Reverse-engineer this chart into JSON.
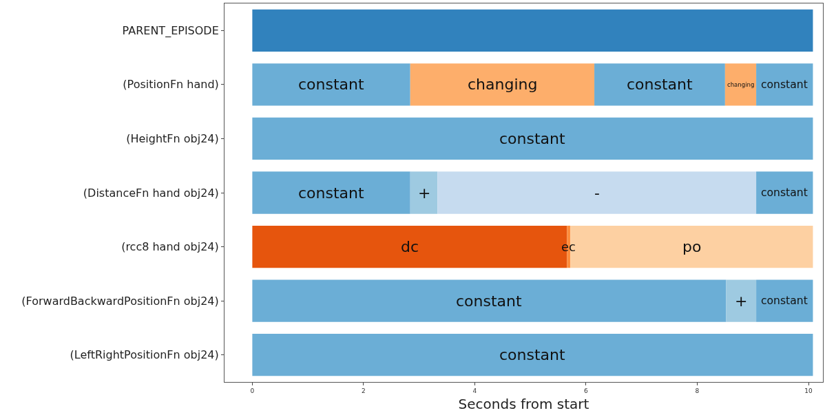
{
  "chart_data": {
    "type": "bar",
    "orientation": "horizontal",
    "xlabel": "Seconds from start",
    "categories": [
      "PARENT_EPISODE",
      "(PositionFn hand)",
      "(HeightFn obj24)",
      "(DistanceFn hand obj24)",
      "(rcc8 hand obj24)",
      "(ForwardBackwardPositionFn obj24)",
      "(LeftRightPositionFn obj24)"
    ],
    "series": [
      {
        "values": [
          10.08,
          2.84,
          10.08,
          2.84,
          5.66,
          8.52,
          10.08
        ],
        "base": [
          0,
          0,
          0,
          0,
          0,
          0,
          0
        ],
        "colors": [
          "#3182bd",
          "#6baed6",
          "#6baed6",
          "#6baed6",
          "#e6550d",
          "#6baed6",
          "#6baed6"
        ],
        "value_labels": [
          null,
          "constant",
          "constant",
          "constant",
          "dc",
          "constant",
          "constant"
        ]
      },
      {
        "values": [
          null,
          3.31,
          null,
          0.49,
          0.06,
          0.54,
          null
        ],
        "base": [
          null,
          2.84,
          null,
          2.84,
          5.66,
          8.52,
          null
        ],
        "colors": [
          null,
          "#fdae6b",
          null,
          "#9ecae1",
          "#fd8d3c",
          "#9ecae1",
          null
        ],
        "value_labels": [
          null,
          "changing",
          null,
          "+",
          "ec",
          "+",
          null
        ]
      },
      {
        "values": [
          null,
          2.35,
          null,
          5.73,
          4.36,
          1.02,
          null
        ],
        "base": [
          null,
          6.15,
          null,
          3.33,
          5.72,
          9.06,
          null
        ],
        "colors": [
          null,
          "#6baed6",
          null,
          "#c6dbef",
          "#fdd0a2",
          "#6baed6",
          null
        ],
        "value_labels": [
          null,
          "constant",
          null,
          "-",
          "po",
          "constant",
          null
        ]
      },
      {
        "values": [
          null,
          0.56,
          null,
          1.02,
          null,
          null,
          null
        ],
        "base": [
          null,
          8.5,
          null,
          9.06,
          null,
          null,
          null
        ],
        "colors": [
          null,
          "#fdae6b",
          null,
          "#6baed6",
          null,
          null,
          null
        ],
        "value_labels": [
          null,
          "changing",
          null,
          "constant",
          null,
          null,
          null
        ]
      },
      {
        "values": [
          null,
          1.02,
          null,
          null,
          null,
          null,
          null
        ],
        "base": [
          null,
          9.06,
          null,
          null,
          null,
          null,
          null
        ],
        "colors": [
          null,
          "#6baed6",
          null,
          null,
          null,
          null,
          null
        ],
        "value_labels": [
          null,
          "constant",
          null,
          null,
          null,
          null,
          null
        ]
      }
    ],
    "xlim": [
      -0.5,
      10.26
    ],
    "xticks": [
      0,
      2,
      4,
      6,
      8,
      10
    ],
    "grid": false
  }
}
